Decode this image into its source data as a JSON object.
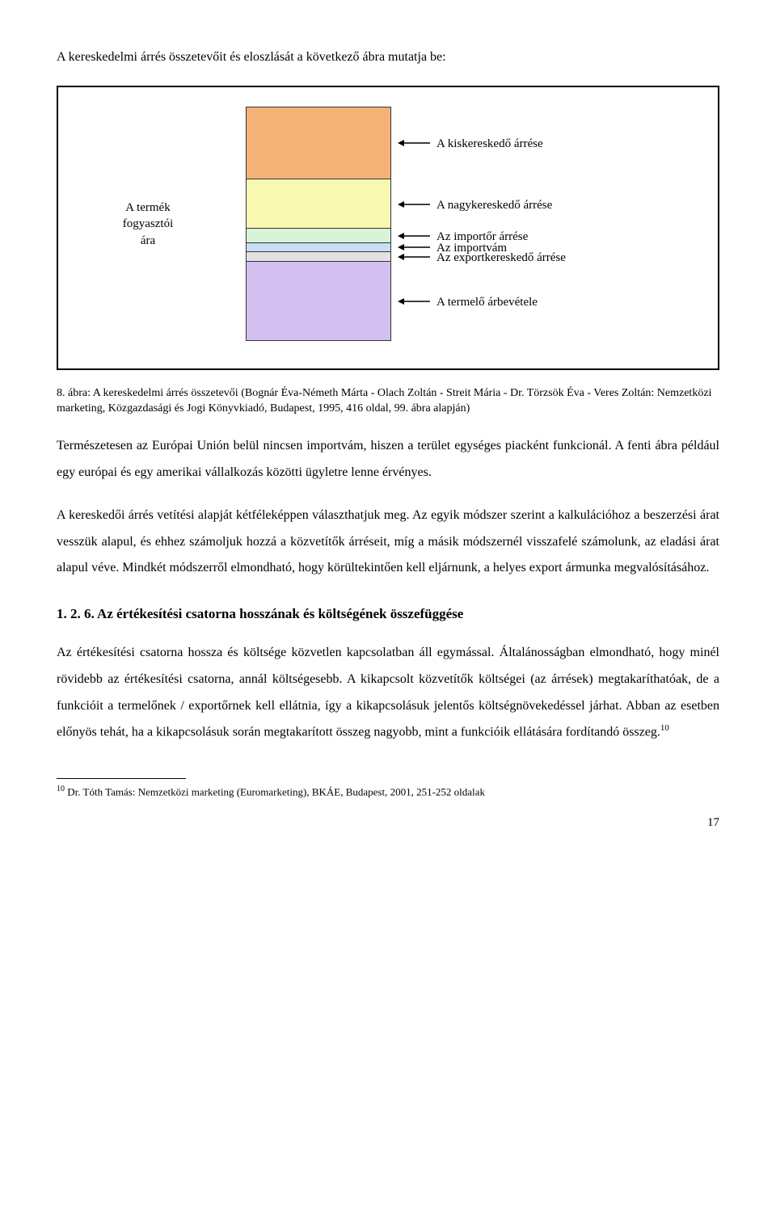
{
  "intro": "A kereskedelmi árrés összetevőit és eloszlását a következő ábra mutatja be:",
  "figure": {
    "left_label_line1": "A termék",
    "left_label_line2": "fogyasztói",
    "left_label_line3": "ára",
    "segments": [
      {
        "color": "#f4b277",
        "height_pct": 31,
        "label": "A kiskereskedő árrése"
      },
      {
        "color": "#f8f8b0",
        "height_pct": 21,
        "label": "A nagykereskedő árrése"
      },
      {
        "color": "#d9f3d9",
        "height_pct": 6,
        "label": "Az importőr árrése"
      },
      {
        "color": "#c9ddf4",
        "height_pct": 4,
        "label": "Az importvám"
      },
      {
        "color": "#e2e2e2",
        "height_pct": 4,
        "label": "Az exportkereskedő árrése"
      },
      {
        "color": "#d3bff0",
        "height_pct": 34,
        "label": "A termelő árbevétele"
      }
    ]
  },
  "caption": "8. ábra: A kereskedelmi árrés összetevői (Bognár Éva-Németh Márta - Olach Zoltán - Streit Mária - Dr. Törzsök Éva - Veres Zoltán: Nemzetközi marketing, Közgazdasági és Jogi Könyvkiadó, Budapest, 1995, 416 oldal, 99. ábra alapján)",
  "para1": "Természetesen az Európai Unión belül nincsen importvám, hiszen a terület egységes piacként funkcionál. A fenti ábra például egy európai és egy amerikai vállalkozás közötti ügyletre lenne érvényes.",
  "para2": "A kereskedői árrés vetítési alapját kétféleképpen választhatjuk meg. Az egyik módszer szerint a kalkulációhoz a beszerzési árat vesszük alapul, és ehhez számoljuk hozzá a közvetítők árréseit, míg a másik módszernél visszafelé számolunk, az eladási árat alapul véve. Mindkét módszerről elmondható, hogy körültekintően kell eljárnunk, a helyes export ármunka megvalósításához.",
  "section_heading": "1. 2. 6. Az értékesítési csatorna hosszának és költségének összefüggése",
  "para3_part1": "Az értékesítési csatorna hossza és költsége közvetlen kapcsolatban áll egymással. Általánosságban elmondható, hogy minél rövidebb az értékesítési csatorna, annál költségesebb. A kikapcsolt közvetítők költségei (az árrések) megtakaríthatóak, de a funkcióit a termelőnek / exportőrnek kell ellátnia, így a kikapcsolásuk jelentős költségnövekedéssel járhat. Abban az esetben előnyös tehát, ha a kikapcsolásuk során megtakarított összeg nagyobb, mint a funkcióik ellátására fordítandó összeg.",
  "fn_marker": "10",
  "footnote": "Dr. Tóth Tamás: Nemzetközi marketing (Euromarketing), BKÁE, Budapest, 2001, 251-252 oldalak",
  "page_number": "17"
}
